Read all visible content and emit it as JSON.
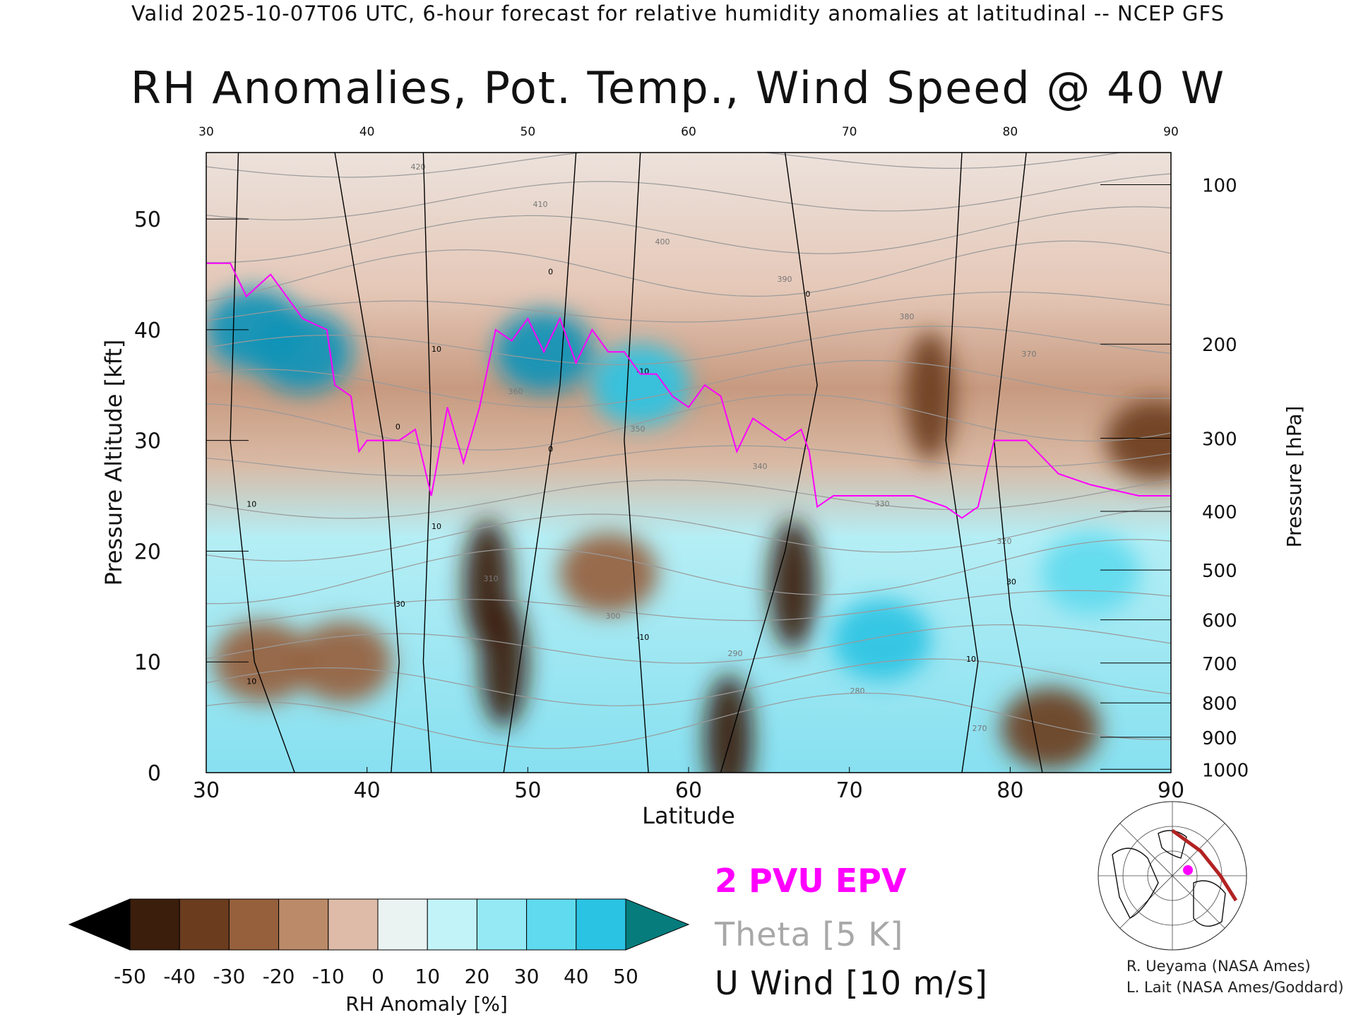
{
  "header": {
    "valid_line": "Valid 2025-10-07T06 UTC, 6-hour forecast for relative humidity anomalies at latitudinal -- NCEP GFS",
    "title": "RH Anomalies, Pot. Temp., Wind Speed @ 40 W"
  },
  "legend": {
    "epv": "2 PVU EPV",
    "theta": "Theta [5 K]",
    "uwind": "U Wind [10 m/s]",
    "epv_color": "#ff00ff",
    "theta_color": "#a8a8a8",
    "uwind_color": "#000000"
  },
  "colorbar": {
    "label": "RH Anomaly [%]",
    "ticks": [
      "-50",
      "-40",
      "-30",
      "-20",
      "-10",
      "0",
      "10",
      "20",
      "30",
      "40",
      "50"
    ],
    "colors": [
      "#000000",
      "#3b1e0c",
      "#6b3c1e",
      "#96603c",
      "#bb8a68",
      "#ddbba8",
      "#eaf2f2",
      "#c2f3f9",
      "#94e9f5",
      "#5fdaee",
      "#2bc3e3",
      "#0b93b7",
      "#067c7c"
    ]
  },
  "credits": {
    "line1": "R. Ueyama (NASA Ames)",
    "line2": "L. Lait (NASA Ames/Goddard)"
  },
  "chart_data": {
    "type": "heatmap",
    "title": "RH Anomalies, Pot. Temp., Wind Speed @ 40 W",
    "xlabel": "Latitude",
    "ylabel": "Pressure Altitude [kft]",
    "y2label": "Pressure [hPa]",
    "xlim": [
      30,
      90
    ],
    "ylim": [
      0,
      56
    ],
    "x_ticks": [
      "30",
      "40",
      "50",
      "60",
      "70",
      "80",
      "90"
    ],
    "y_ticks": [
      "0",
      "10",
      "20",
      "30",
      "40",
      "50"
    ],
    "pressure_ticks": [
      {
        "label": "100",
        "kft": 53.1
      },
      {
        "label": "200",
        "kft": 38.7
      },
      {
        "label": "300",
        "kft": 30.2
      },
      {
        "label": "400",
        "kft": 23.6
      },
      {
        "label": "500",
        "kft": 18.3
      },
      {
        "label": "600",
        "kft": 13.8
      },
      {
        "label": "700",
        "kft": 9.9
      },
      {
        "label": "800",
        "kft": 6.3
      },
      {
        "label": "900",
        "kft": 3.2
      },
      {
        "label": "1000",
        "kft": 0.3
      }
    ],
    "epv_2pvu": {
      "name": "2 PVU EPV",
      "points": [
        [
          30,
          46
        ],
        [
          31.5,
          46
        ],
        [
          32.5,
          43
        ],
        [
          34,
          45
        ],
        [
          36,
          41
        ],
        [
          37.5,
          40
        ],
        [
          38,
          35
        ],
        [
          39,
          34
        ],
        [
          39.5,
          29
        ],
        [
          40,
          30
        ],
        [
          42,
          30
        ],
        [
          43,
          31
        ],
        [
          43.5,
          28
        ],
        [
          44,
          25
        ],
        [
          45,
          33
        ],
        [
          46,
          28
        ],
        [
          47,
          33
        ],
        [
          48,
          40
        ],
        [
          49,
          39
        ],
        [
          50,
          41
        ],
        [
          51,
          38
        ],
        [
          52,
          41
        ],
        [
          53,
          37
        ],
        [
          54,
          40
        ],
        [
          55,
          38
        ],
        [
          56,
          38
        ],
        [
          57,
          36
        ],
        [
          58,
          36
        ],
        [
          59,
          34
        ],
        [
          60,
          33
        ],
        [
          61,
          35
        ],
        [
          62,
          34
        ],
        [
          63,
          29
        ],
        [
          64,
          32
        ],
        [
          65,
          31
        ],
        [
          66,
          30
        ],
        [
          67,
          31
        ],
        [
          67.5,
          29
        ],
        [
          68,
          24
        ],
        [
          69,
          25
        ],
        [
          72,
          25
        ],
        [
          74,
          25
        ],
        [
          76,
          24
        ],
        [
          77,
          23
        ],
        [
          78,
          24
        ],
        [
          79,
          30
        ],
        [
          80,
          30
        ],
        [
          81,
          30
        ],
        [
          83,
          27
        ],
        [
          85,
          26
        ],
        [
          88,
          25
        ],
        [
          90,
          25
        ]
      ]
    },
    "theta_labels": [
      "420",
      "410",
      "400",
      "390",
      "380",
      "370",
      "360",
      "350",
      "340",
      "330",
      "320",
      "310",
      "300",
      "290",
      "280",
      "270"
    ],
    "uwind_labels": [
      "10",
      "30",
      "10",
      "0",
      "-10",
      "0",
      "10",
      "30",
      "10",
      "0",
      "10",
      "0",
      "-10"
    ],
    "rh_anomaly_blobs": [
      {
        "lat": 33,
        "kft": 40,
        "value": 45
      },
      {
        "lat": 36,
        "kft": 38,
        "value": 45
      },
      {
        "lat": 51,
        "kft": 38,
        "value": 45
      },
      {
        "lat": 57,
        "kft": 35,
        "value": 40
      },
      {
        "lat": 48.5,
        "kft": 10,
        "value": -55
      },
      {
        "lat": 47.5,
        "kft": 17,
        "value": -50
      },
      {
        "lat": 62.5,
        "kft": 3,
        "value": -55
      },
      {
        "lat": 66.5,
        "kft": 17,
        "value": -50
      },
      {
        "lat": 55,
        "kft": 18,
        "value": -35
      },
      {
        "lat": 38.5,
        "kft": 10,
        "value": -35
      },
      {
        "lat": 33.5,
        "kft": 10,
        "value": -30
      },
      {
        "lat": 82.5,
        "kft": 4,
        "value": -40
      },
      {
        "lat": 75,
        "kft": 34,
        "value": -45
      },
      {
        "lat": 89,
        "kft": 30,
        "value": -40
      },
      {
        "lat": 72,
        "kft": 12,
        "value": 35
      },
      {
        "lat": 85,
        "kft": 18,
        "value": 30
      }
    ]
  }
}
